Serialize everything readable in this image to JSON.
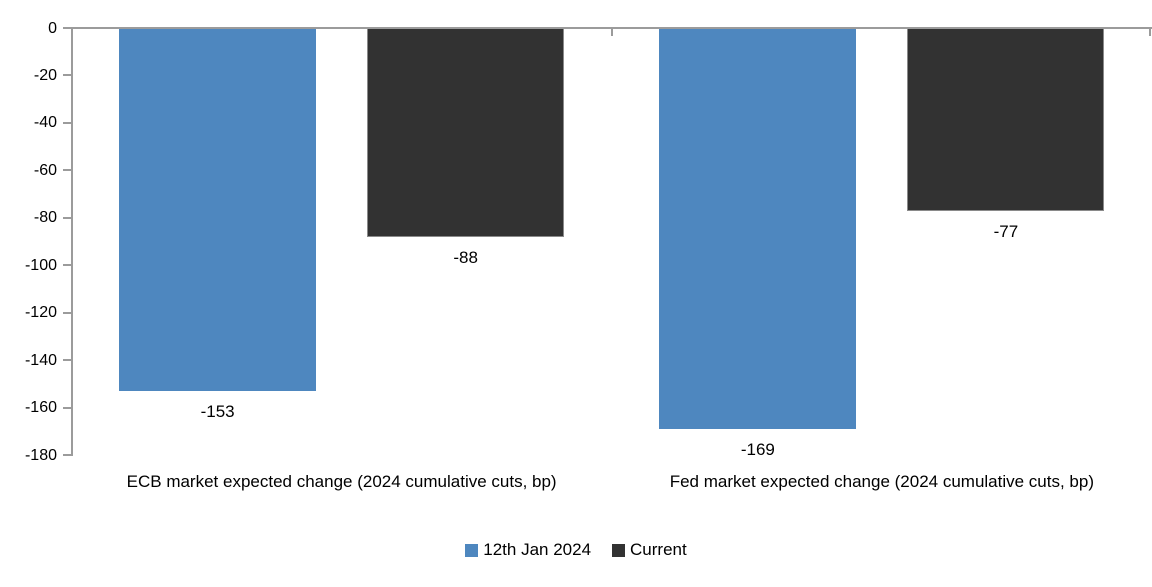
{
  "chart_data": {
    "type": "bar",
    "title": "",
    "xlabel": "",
    "ylabel": "",
    "categories": [
      "ECB market expected change (2024 cumulative cuts, bp)",
      "Fed market expected change (2024 cumulative cuts, bp)"
    ],
    "series": [
      {
        "name": "12th Jan 2024",
        "color": "#4E87BF",
        "values": [
          -153,
          -169
        ],
        "data_labels": [
          "-153",
          "-169"
        ]
      },
      {
        "name": "Current",
        "color": "#323232",
        "border_color": "#8A8A8A",
        "values": [
          -88,
          -77
        ],
        "data_labels": [
          "-88",
          "-77"
        ]
      }
    ],
    "ylim": [
      -180,
      0
    ],
    "ytick_labels": [
      "0",
      "-20",
      "-40",
      "-60",
      "-80",
      "-100",
      "-120",
      "-140",
      "-160",
      "-180"
    ],
    "grid": false,
    "legend_position": "bottom",
    "axis_color": "#9B9B9B",
    "text_color": "#000000",
    "background": "#FFFFFF"
  }
}
